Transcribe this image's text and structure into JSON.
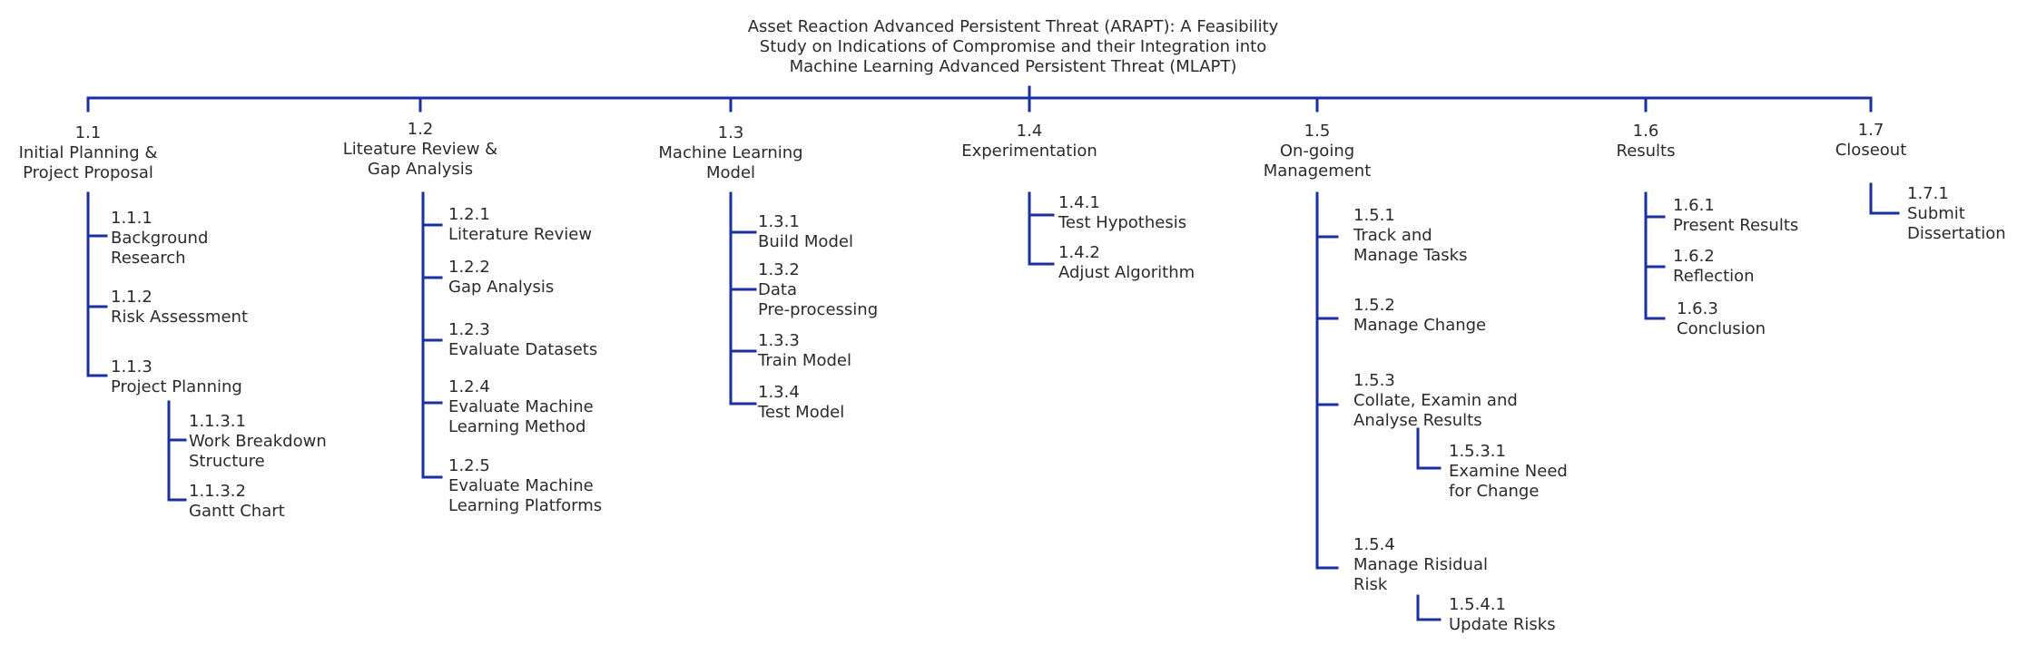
{
  "title": {
    "line1": "Asset Reaction Advanced Persistent Threat (ARAPT): A Feasibility",
    "line2": "Study on Indications of Compromise and their Integration into",
    "line3": "Machine Learning Advanced Persistent Threat (MLAPT)"
  },
  "colors": {
    "connector": "#1a2fa0",
    "text": "#2b2b2b"
  },
  "phases": [
    {
      "id": "1.1",
      "label": [
        "Initial Planning &",
        "Project Proposal"
      ],
      "tasks": [
        {
          "id": "1.1.1",
          "label": [
            "Background",
            "Research"
          ]
        },
        {
          "id": "1.1.2",
          "label": [
            "Risk Assessment"
          ]
        },
        {
          "id": "1.1.3",
          "label": [
            "Project Planning"
          ],
          "subtasks": [
            {
              "id": "1.1.3.1",
              "label": [
                "Work Breakdown",
                "Structure"
              ]
            },
            {
              "id": "1.1.3.2",
              "label": [
                "Gantt Chart"
              ]
            }
          ]
        }
      ]
    },
    {
      "id": "1.2",
      "label": [
        "Liteature Review &",
        "Gap Analysis"
      ],
      "tasks": [
        {
          "id": "1.2.1",
          "label": [
            "Literature Review"
          ]
        },
        {
          "id": "1.2.2",
          "label": [
            "Gap Analysis"
          ]
        },
        {
          "id": "1.2.3",
          "label": [
            "Evaluate Datasets"
          ]
        },
        {
          "id": "1.2.4",
          "label": [
            "Evaluate Machine",
            "Learning Method"
          ]
        },
        {
          "id": "1.2.5",
          "label": [
            "Evaluate Machine",
            "Learning Platforms"
          ]
        }
      ]
    },
    {
      "id": "1.3",
      "label": [
        "Machine Learning",
        "Model"
      ],
      "tasks": [
        {
          "id": "1.3.1",
          "label": [
            "Build Model"
          ]
        },
        {
          "id": "1.3.2",
          "label": [
            "Data",
            "Pre-processing"
          ]
        },
        {
          "id": "1.3.3",
          "label": [
            "Train Model"
          ]
        },
        {
          "id": "1.3.4",
          "label": [
            "Test Model"
          ]
        }
      ]
    },
    {
      "id": "1.4",
      "label": [
        "Experimentation"
      ],
      "tasks": [
        {
          "id": "1.4.1",
          "label": [
            "Test Hypothesis"
          ]
        },
        {
          "id": "1.4.2",
          "label": [
            "Adjust Algorithm"
          ]
        }
      ]
    },
    {
      "id": "1.5",
      "label": [
        "On-going",
        "Management"
      ],
      "tasks": [
        {
          "id": "1.5.1",
          "label": [
            "Track and",
            "Manage Tasks"
          ]
        },
        {
          "id": "1.5.2",
          "label": [
            "Manage Change"
          ]
        },
        {
          "id": "1.5.3",
          "label": [
            "Collate, Examin and",
            "Analyse Results"
          ],
          "subtasks": [
            {
              "id": "1.5.3.1",
              "label": [
                "Examine Need",
                "for Change"
              ]
            }
          ]
        },
        {
          "id": "1.5.4",
          "label": [
            "Manage Risidual",
            "Risk"
          ],
          "subtasks": [
            {
              "id": "1.5.4.1",
              "label": [
                "Update Risks"
              ]
            }
          ]
        }
      ]
    },
    {
      "id": "1.6",
      "label": [
        "Results"
      ],
      "tasks": [
        {
          "id": "1.6.1",
          "label": [
            "Present Results"
          ]
        },
        {
          "id": "1.6.2",
          "label": [
            "Reflection"
          ]
        },
        {
          "id": "1.6.3",
          "label": [
            "Conclusion"
          ]
        }
      ]
    },
    {
      "id": "1.7",
      "label": [
        "Closeout"
      ],
      "tasks": [
        {
          "id": "1.7.1",
          "label": [
            "Submit",
            "Dissertation"
          ]
        }
      ]
    }
  ]
}
